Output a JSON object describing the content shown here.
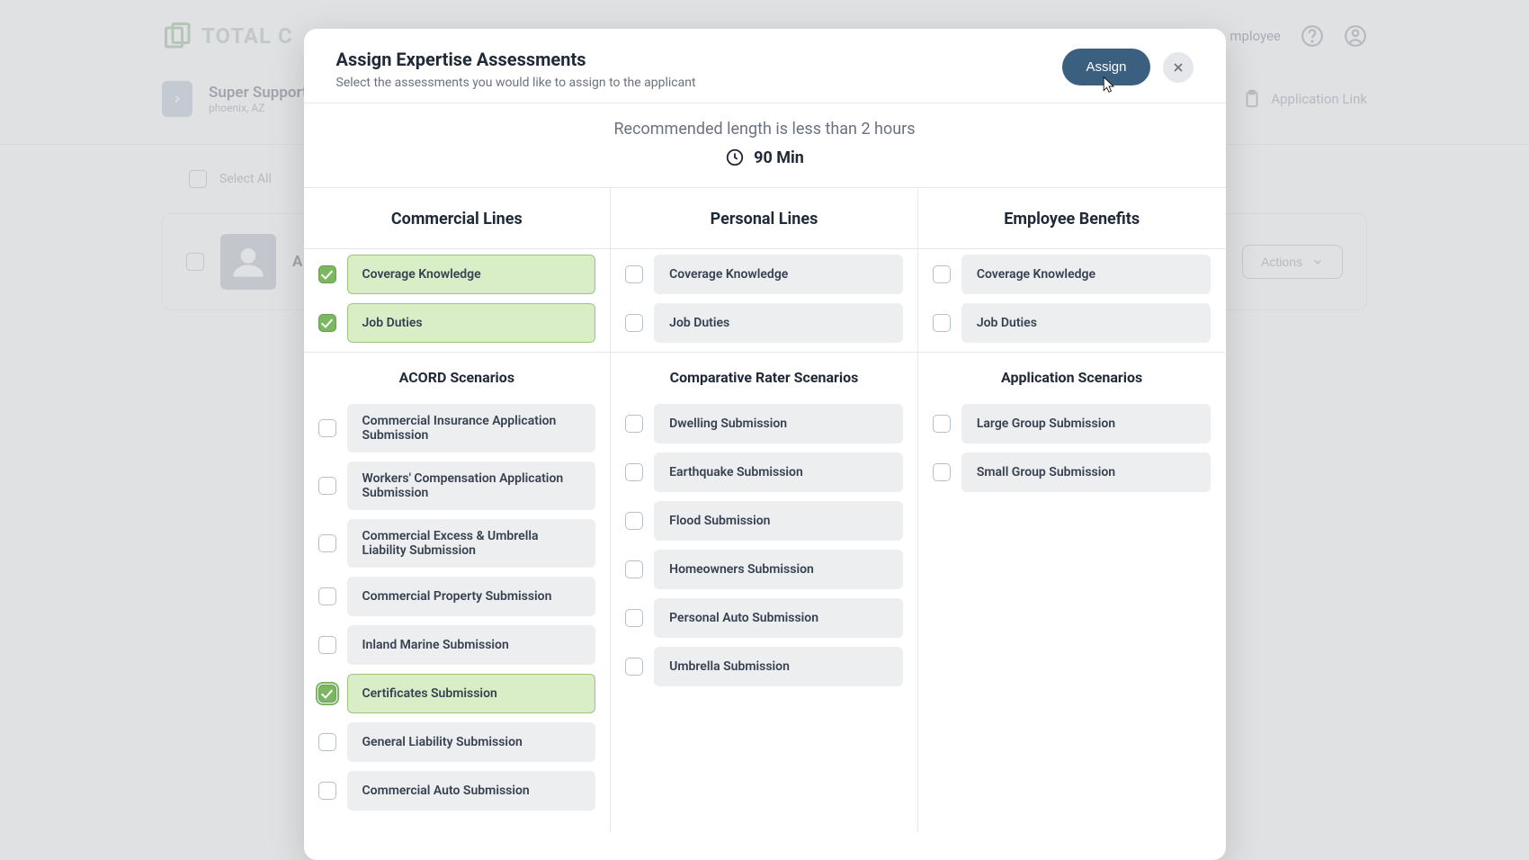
{
  "brand": {
    "name": "TOTAL C"
  },
  "header": {
    "employee_link": "mployee"
  },
  "jobbar": {
    "title": "Super Support",
    "location": "phoenix, AZ",
    "app_link": "Application Link"
  },
  "list": {
    "select_all": "Select All",
    "actions": "Actions"
  },
  "modal": {
    "title": "Assign Expertise Assessments",
    "subtitle": "Select the assessments you would like to assign to the applicant",
    "assign": "Assign",
    "banner": "Recommended length is less than 2 hours",
    "duration": "90 Min",
    "columns": {
      "commercial": {
        "title": "Commercial Lines",
        "core": [
          {
            "label": "Coverage Knowledge",
            "checked": true
          },
          {
            "label": "Job Duties",
            "checked": true
          }
        ],
        "scenarios_title": "ACORD Scenarios",
        "scenarios": [
          {
            "label": "Commercial Insurance Application Submission",
            "checked": false
          },
          {
            "label": "Workers' Compensation Application Submission",
            "checked": false
          },
          {
            "label": "Commercial Excess & Umbrella Liability Submission",
            "checked": false
          },
          {
            "label": "Commercial Property Submission",
            "checked": false
          },
          {
            "label": "Inland Marine Submission",
            "checked": false
          },
          {
            "label": "Certificates Submission",
            "checked": true,
            "focus": true
          },
          {
            "label": "General Liability Submission",
            "checked": false
          },
          {
            "label": "Commercial Auto Submission",
            "checked": false
          }
        ]
      },
      "personal": {
        "title": "Personal Lines",
        "core": [
          {
            "label": "Coverage Knowledge",
            "checked": false
          },
          {
            "label": "Job Duties",
            "checked": false
          }
        ],
        "scenarios_title": "Comparative Rater Scenarios",
        "scenarios": [
          {
            "label": "Dwelling Submission",
            "checked": false
          },
          {
            "label": "Earthquake Submission",
            "checked": false
          },
          {
            "label": "Flood Submission",
            "checked": false
          },
          {
            "label": "Homeowners Submission",
            "checked": false
          },
          {
            "label": "Personal Auto Submission",
            "checked": false
          },
          {
            "label": "Umbrella Submission",
            "checked": false
          }
        ]
      },
      "benefits": {
        "title": "Employee Benefits",
        "core": [
          {
            "label": "Coverage Knowledge",
            "checked": false
          },
          {
            "label": "Job Duties",
            "checked": false
          }
        ],
        "scenarios_title": "Application Scenarios",
        "scenarios": [
          {
            "label": "Large Group Submission",
            "checked": false
          },
          {
            "label": "Small Group Submission",
            "checked": false
          }
        ]
      }
    }
  },
  "colors": {
    "accent_green": "#7bb661",
    "pill_sel_bg": "#d9eec7",
    "pill_bg": "#eceeef",
    "primary_btn": "#3b5f7f",
    "text": "#1f2937",
    "muted": "#6b7280",
    "border": "#e5e7eb"
  }
}
